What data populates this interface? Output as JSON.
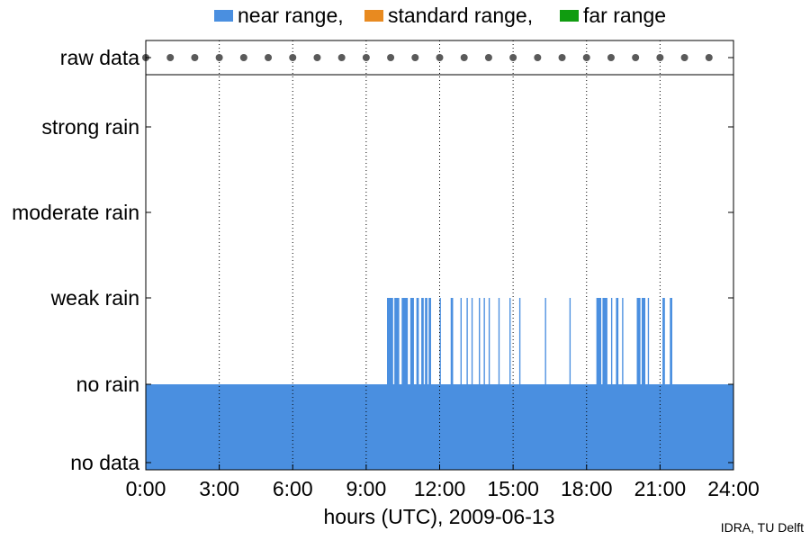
{
  "chart_data": {
    "type": "bar",
    "legend": [
      {
        "label": "near range,",
        "color": "#4a8fe0"
      },
      {
        "label": "standard range,",
        "color": "#e88a20"
      },
      {
        "label": "far range",
        "color": "#109c10"
      }
    ],
    "categories": [
      "no data",
      "no rain",
      "weak rain",
      "moderate rain",
      "strong rain"
    ],
    "raw_data_label": "raw data",
    "x_ticks": [
      "0:00",
      "3:00",
      "6:00",
      "9:00",
      "12:00",
      "15:00",
      "18:00",
      "21:00",
      "24:00"
    ],
    "xlim": [
      0,
      24
    ],
    "xlabel": "hours (UTC), 2009-06-13",
    "raw_data_times": [
      0,
      1,
      2,
      3,
      4,
      5,
      6,
      7,
      8,
      9,
      10,
      11,
      12,
      13,
      14,
      15,
      16,
      17,
      18,
      19,
      20,
      21,
      22,
      23
    ],
    "series": [
      {
        "name": "near range,",
        "baseline": "no rain",
        "weak_rain_intervals": [
          [
            9.85,
            10.1
          ],
          [
            10.15,
            10.35
          ],
          [
            10.45,
            10.7
          ],
          [
            10.8,
            10.95
          ],
          [
            11.05,
            11.15
          ],
          [
            11.25,
            11.35
          ],
          [
            11.4,
            11.5
          ],
          [
            11.55,
            11.65
          ],
          [
            12.0,
            12.05
          ],
          [
            12.45,
            12.55
          ],
          [
            12.85,
            12.9
          ],
          [
            13.1,
            13.15
          ],
          [
            13.3,
            13.35
          ],
          [
            13.6,
            13.65
          ],
          [
            13.8,
            13.85
          ],
          [
            14.0,
            14.05
          ],
          [
            14.4,
            14.45
          ],
          [
            14.85,
            14.9
          ],
          [
            15.25,
            15.3
          ],
          [
            16.3,
            16.35
          ],
          [
            17.3,
            17.35
          ],
          [
            18.4,
            18.6
          ],
          [
            18.65,
            18.85
          ],
          [
            19.0,
            19.05
          ],
          [
            19.2,
            19.3
          ],
          [
            19.45,
            19.5
          ],
          [
            20.05,
            20.2
          ],
          [
            20.25,
            20.4
          ],
          [
            20.5,
            20.55
          ],
          [
            21.1,
            21.2
          ],
          [
            21.4,
            21.5
          ]
        ]
      }
    ],
    "grid": "vertical dotted at 3-hour ticks"
  },
  "credit": "IDRA, TU Delft"
}
